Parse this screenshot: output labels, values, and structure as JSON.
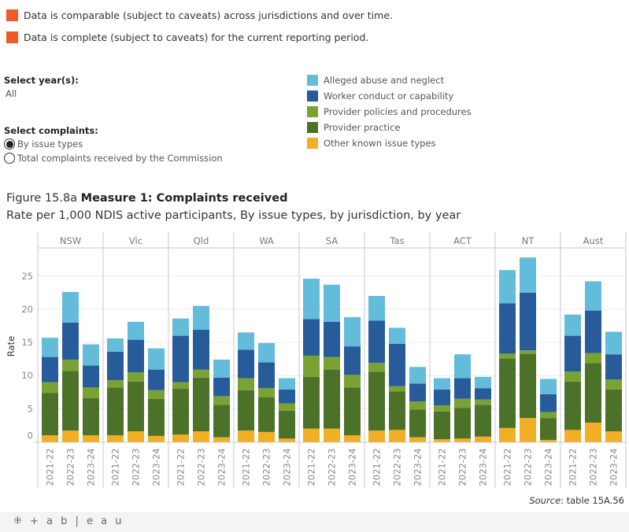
{
  "notes": [
    {
      "text": "Data is comparable (subject to caveats) across jurisdictions and over time.",
      "color": "#f05a28"
    },
    {
      "text": "Data is complete (subject to caveats) for the current reporting period.",
      "color": "#f05a28"
    }
  ],
  "filters": {
    "year_label": "Select year(s):",
    "year_value": "All",
    "complaints_label": "Select complaints:",
    "options": [
      {
        "label": "By issue types",
        "selected": true
      },
      {
        "label": "Total complaints received by the Commission",
        "selected": false
      }
    ]
  },
  "figure": {
    "number": "Figure 15.8a",
    "title": "Measure 1: Complaints received",
    "subtitle": "Rate per 1,000 NDIS active participants, By issue types, by jurisdiction, by year"
  },
  "source": {
    "label": "Source",
    "text": ": table 15A.56"
  },
  "footer": {
    "logo_text": "+ a b | e a u",
    "logo_icon": "tableau-logo-icon"
  },
  "chart_data": {
    "type": "bar",
    "stacked": true,
    "title": "Measure 1: Complaints received",
    "subtitle": "Rate per 1,000 NDIS active participants, By issue types, by jurisdiction, by year",
    "xlabel": "",
    "ylabel": "Rate",
    "ylim": [
      0,
      28
    ],
    "yticks": [
      0,
      5,
      10,
      15,
      20,
      25
    ],
    "grid": true,
    "legend_position": "top-right",
    "panels": [
      "NSW",
      "Vic",
      "Qld",
      "WA",
      "SA",
      "Tas",
      "ACT",
      "NT",
      "Aust"
    ],
    "categories": [
      "2021-22",
      "2022-23",
      "2023-24"
    ],
    "series": [
      {
        "name": "Other known issue types",
        "color": "#f2ae24",
        "values": [
          [
            1.0,
            1.7,
            1.0
          ],
          [
            1.0,
            1.6,
            0.9
          ],
          [
            1.1,
            1.6,
            0.7
          ],
          [
            1.7,
            1.5,
            0.5
          ],
          [
            2.0,
            2.0,
            1.0
          ],
          [
            1.7,
            1.8,
            0.7
          ],
          [
            0.4,
            0.5,
            0.8
          ],
          [
            2.1,
            3.6,
            0.3
          ],
          [
            1.8,
            2.9,
            1.6
          ]
        ]
      },
      {
        "name": "Provider practice",
        "color": "#4c7129",
        "values": [
          [
            6.4,
            9.0,
            5.6
          ],
          [
            7.2,
            7.5,
            5.6
          ],
          [
            6.9,
            8.1,
            4.9
          ],
          [
            6.1,
            5.2,
            4.2
          ],
          [
            7.8,
            8.9,
            7.2
          ],
          [
            8.9,
            5.8,
            4.2
          ],
          [
            4.2,
            4.6,
            4.8
          ],
          [
            10.5,
            9.7,
            3.3
          ],
          [
            7.3,
            9.0,
            6.3
          ]
        ]
      },
      {
        "name": "Provider policies and procedures",
        "color": "#7aa233",
        "values": [
          [
            1.6,
            1.7,
            1.6
          ],
          [
            1.1,
            1.4,
            1.3
          ],
          [
            1.0,
            1.2,
            1.3
          ],
          [
            1.8,
            1.4,
            1.1
          ],
          [
            3.2,
            1.9,
            1.9
          ],
          [
            1.3,
            0.8,
            1.2
          ],
          [
            0.9,
            1.4,
            0.8
          ],
          [
            0.7,
            0.5,
            0.9
          ],
          [
            1.5,
            1.5,
            1.5
          ]
        ]
      },
      {
        "name": "Worker conduct or capability",
        "color": "#275b9a",
        "values": [
          [
            3.8,
            5.6,
            3.3
          ],
          [
            4.3,
            4.9,
            3.1
          ],
          [
            7.0,
            6.0,
            2.8
          ],
          [
            4.3,
            3.9,
            2.1
          ],
          [
            5.5,
            5.3,
            4.3
          ],
          [
            6.4,
            6.4,
            2.7
          ],
          [
            2.4,
            3.1,
            1.7
          ],
          [
            7.6,
            8.7,
            2.7
          ],
          [
            5.4,
            6.4,
            3.8
          ]
        ]
      },
      {
        "name": "Alleged abuse and neglect",
        "color": "#64bcdb",
        "values": [
          [
            2.9,
            4.6,
            3.2
          ],
          [
            2.0,
            2.7,
            3.2
          ],
          [
            2.6,
            3.6,
            2.7
          ],
          [
            2.6,
            2.9,
            1.7
          ],
          [
            6.1,
            5.6,
            4.4
          ],
          [
            3.7,
            2.4,
            2.5
          ],
          [
            1.7,
            3.6,
            1.7
          ],
          [
            5.0,
            5.3,
            2.3
          ],
          [
            3.2,
            4.4,
            3.4
          ]
        ]
      }
    ],
    "totals": [
      [
        15.7,
        22.6,
        14.7
      ],
      [
        15.6,
        18.1,
        14.1
      ],
      [
        18.6,
        20.5,
        12.5
      ],
      [
        16.5,
        14.9,
        9.6
      ],
      [
        24.6,
        23.7,
        18.8
      ],
      [
        22.0,
        17.2,
        11.3
      ],
      [
        9.6,
        13.2,
        9.8
      ],
      [
        25.9,
        27.8,
        9.5
      ],
      [
        19.2,
        24.2,
        16.6
      ]
    ]
  }
}
